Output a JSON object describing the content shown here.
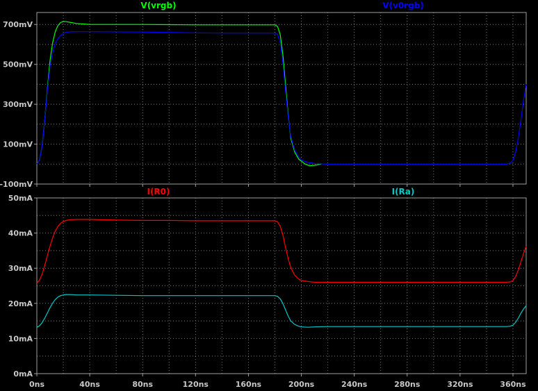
{
  "chart_data": [
    {
      "type": "line",
      "x_ticks": [
        "0ns",
        "40ns",
        "80ns",
        "120ns",
        "160ns",
        "200ns",
        "240ns",
        "280ns",
        "320ns",
        "360ns"
      ],
      "xlim": [
        0,
        370
      ],
      "ylim": [
        -100,
        760
      ],
      "y_ticks": [
        {
          "value": -100,
          "label": "-100mV"
        },
        {
          "value": 100,
          "label": "100mV"
        },
        {
          "value": 300,
          "label": "300mV"
        },
        {
          "value": 500,
          "label": "500mV"
        },
        {
          "value": 700,
          "label": "700mV"
        }
      ],
      "grid": true,
      "series": [
        {
          "name": "V(vrgb)",
          "color": "#00ff00",
          "x": [
            0,
            2,
            4,
            6,
            8,
            10,
            12,
            14,
            16,
            18,
            20,
            22,
            25,
            30,
            40,
            60,
            80,
            100,
            120,
            140,
            160,
            175,
            180,
            182,
            184,
            186,
            188,
            190,
            192,
            195,
            198,
            200,
            203,
            206,
            210,
            215
          ],
          "y": [
            0,
            20,
            90,
            220,
            380,
            520,
            610,
            665,
            695,
            710,
            715,
            714,
            711,
            705,
            700,
            700,
            700,
            699,
            698,
            698,
            698,
            698,
            698,
            690,
            650,
            550,
            400,
            250,
            130,
            60,
            25,
            15,
            0,
            -8,
            -6,
            0
          ]
        },
        {
          "name": "V(v0rgb)",
          "color": "#0000ff",
          "x": [
            0,
            2,
            4,
            6,
            8,
            10,
            12,
            14,
            16,
            18,
            20,
            22,
            25,
            30,
            40,
            60,
            80,
            100,
            120,
            140,
            160,
            175,
            180,
            182,
            184,
            186,
            188,
            190,
            192,
            195,
            198,
            200,
            205,
            210,
            220,
            240,
            280,
            320,
            355,
            358,
            360,
            362,
            364,
            366,
            368,
            370
          ],
          "y": [
            0,
            20,
            90,
            220,
            370,
            490,
            560,
            605,
            630,
            645,
            655,
            660,
            663,
            664,
            664,
            663,
            662,
            660,
            658,
            657,
            657,
            657,
            657,
            650,
            610,
            510,
            370,
            240,
            140,
            70,
            35,
            20,
            8,
            3,
            0,
            0,
            0,
            0,
            0,
            5,
            20,
            60,
            130,
            220,
            320,
            400
          ]
        }
      ]
    },
    {
      "type": "line",
      "x_ticks": [
        "0ns",
        "40ns",
        "80ns",
        "120ns",
        "160ns",
        "200ns",
        "240ns",
        "280ns",
        "320ns",
        "360ns"
      ],
      "xlim": [
        0,
        370
      ],
      "ylim": [
        0,
        50
      ],
      "y_ticks": [
        {
          "value": 0,
          "label": "0mA"
        },
        {
          "value": 10,
          "label": "10mA"
        },
        {
          "value": 20,
          "label": "20mA"
        },
        {
          "value": 30,
          "label": "30mA"
        },
        {
          "value": 40,
          "label": "40mA"
        },
        {
          "value": 50,
          "label": "50mA"
        }
      ],
      "grid": true,
      "series": [
        {
          "name": "I(R0)",
          "color": "#ff0000",
          "x": [
            0,
            2,
            4,
            6,
            8,
            10,
            12,
            14,
            16,
            18,
            20,
            22,
            25,
            30,
            40,
            60,
            80,
            100,
            120,
            140,
            160,
            175,
            180,
            182,
            184,
            186,
            188,
            190,
            192,
            195,
            198,
            200,
            205,
            210,
            220,
            240,
            280,
            320,
            355,
            358,
            360,
            362,
            364,
            366,
            368,
            370
          ],
          "y": [
            25.8,
            26.6,
            28.3,
            30.8,
            33.6,
            36.3,
            38.7,
            40.6,
            41.9,
            42.8,
            43.3,
            43.6,
            43.8,
            43.9,
            43.9,
            43.7,
            43.6,
            43.6,
            43.5,
            43.5,
            43.5,
            43.5,
            43.5,
            43.2,
            42.0,
            39.5,
            36.0,
            32.8,
            30.2,
            28.0,
            26.9,
            26.5,
            26.2,
            26.0,
            26.0,
            26.0,
            26.0,
            26.0,
            26.0,
            26.1,
            26.5,
            27.6,
            29.5,
            31.8,
            34.2,
            36.2
          ]
        },
        {
          "name": "I(Ra)",
          "color": "#00c8c8",
          "x": [
            0,
            2,
            4,
            6,
            8,
            10,
            12,
            14,
            16,
            18,
            20,
            22,
            25,
            30,
            40,
            60,
            80,
            100,
            120,
            140,
            160,
            175,
            180,
            182,
            184,
            186,
            188,
            190,
            192,
            195,
            198,
            200,
            205,
            210,
            220,
            240,
            280,
            320,
            355,
            358,
            360,
            362,
            364,
            366,
            368,
            370
          ],
          "y": [
            13.2,
            13.6,
            14.5,
            15.8,
            17.3,
            18.8,
            20.1,
            21.1,
            21.8,
            22.2,
            22.4,
            22.5,
            22.5,
            22.4,
            22.4,
            22.3,
            22.2,
            22.2,
            22.2,
            22.2,
            22.2,
            22.2,
            22.2,
            22.0,
            21.3,
            20.0,
            18.2,
            16.4,
            15.0,
            14.0,
            13.5,
            13.3,
            13.2,
            13.3,
            13.4,
            13.4,
            13.4,
            13.4,
            13.4,
            13.5,
            13.8,
            14.6,
            15.8,
            17.2,
            18.4,
            19.3
          ]
        }
      ]
    }
  ],
  "colors": {
    "background": "#000000",
    "frame": "#a0a0a0",
    "grid": "#7a7a7a",
    "tick_text": "#c8c8c8"
  }
}
